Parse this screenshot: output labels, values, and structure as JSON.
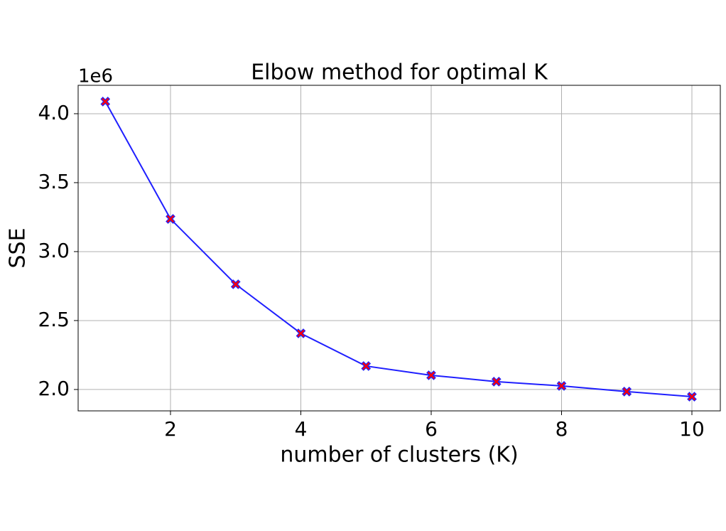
{
  "chart_data": {
    "type": "line",
    "title": "Elbow method for optimal K",
    "xlabel": "number of clusters (K)",
    "ylabel": "SSE",
    "y_offset_label": "1e6",
    "x": [
      1,
      2,
      3,
      4,
      5,
      6,
      7,
      8,
      9,
      10
    ],
    "series": [
      {
        "color": "#1f1fff",
        "marker_color": "#ff0000",
        "values": [
          4.088,
          3.237,
          2.763,
          2.407,
          2.17,
          2.103,
          2.057,
          2.026,
          1.985,
          1.948
        ]
      }
    ],
    "xlim": [
      0.583,
      10.436
    ],
    "xticks": [
      2,
      4,
      6,
      8,
      10
    ],
    "ylim": [
      1.845,
      4.206
    ],
    "yticks": [
      {
        "value": 2,
        "label": "2.0"
      },
      {
        "value": 2.5,
        "label": "2.5"
      },
      {
        "value": 3,
        "label": "3.0"
      },
      {
        "value": 3.5,
        "label": "3.5"
      },
      {
        "value": 4,
        "label": "4.0"
      }
    ],
    "grid": true
  }
}
